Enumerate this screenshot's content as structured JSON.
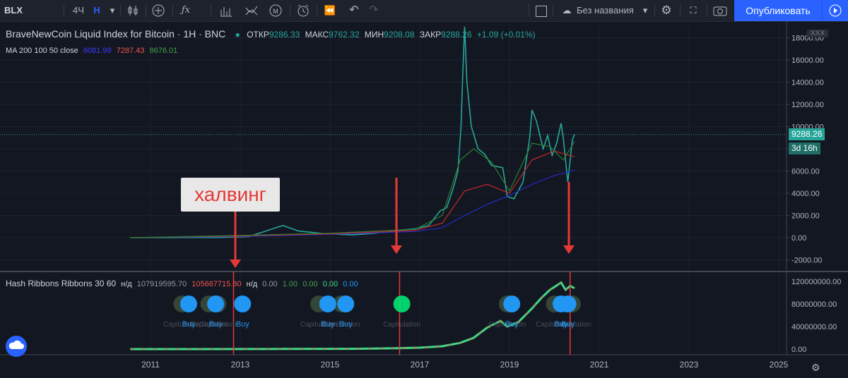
{
  "toolbar": {
    "symbol": "BLX",
    "interval_4h": "4Ч",
    "interval_h": "Н",
    "layout_name": "Без названия",
    "publish_label": "Опубликовать",
    "icons": [
      "candles-icon",
      "add-indicator-icon",
      "fx-icon",
      "bars-icon",
      "compare-icon",
      "alert-icon",
      "replay-icon",
      "undo-icon",
      "redo-icon",
      "fullscreen-icon",
      "cloud-icon",
      "settings-icon",
      "expand-icon",
      "camera-icon",
      "play-icon"
    ]
  },
  "main_legend": {
    "title": "BraveNewCoin Liquid Index for Bitcoin · 1H · BNC",
    "open_label": "ОТКР",
    "open_val": "9286.33",
    "high_label": "МАКС",
    "high_val": "9762.32",
    "low_label": "МИН",
    "low_val": "9208.08",
    "close_label": "ЗАКР",
    "close_val": "9288.26",
    "change": "+1.09 (+0.01%)",
    "ma_label": "MA 200 100 50 close",
    "ma200": "6081.99",
    "ma100": "7287.43",
    "ma50": "8676.01",
    "xxx_badge": "XXX"
  },
  "price_tag": {
    "price": "9288.26",
    "countdown": "3d 16h"
  },
  "annotation": {
    "halving_label": "халвинг"
  },
  "hash_legend": {
    "title": "Hash Ribbons Ribbons 30 60",
    "v1": "н/д",
    "v2": "107919595.70",
    "v3": "105667715.80",
    "v4": "н/д",
    "v5": "0.00",
    "v6": "1.00",
    "v7": "0.00",
    "v8": "0.00",
    "v9": "0.00"
  },
  "signal_labels": {
    "buy": "Buy",
    "capitulation": "Capitulation"
  },
  "colors": {
    "background": "#131722",
    "up": "#26a69a",
    "down": "#ef5350",
    "ma200": "#2828c8",
    "ma100": "#c62828",
    "ma50": "#2e7d32",
    "hash_green": "#3ddc84",
    "buy_blue": "#2196f3",
    "arrow_red": "#e53935"
  },
  "chart_data": [
    {
      "type": "line",
      "title": "BraveNewCoin Liquid Index for Bitcoin · 1H · BNC",
      "x_unit": "year",
      "x_ticks": [
        "2011",
        "2013",
        "2015",
        "2017",
        "2019",
        "2021",
        "2023",
        "2025"
      ],
      "y_ticks": [
        "-2000.00",
        "0.00",
        "2000.00",
        "4000.00",
        "6000.00",
        "8000.00",
        "10000.00",
        "12000.00",
        "14000.00",
        "16000.00",
        "18000.00"
      ],
      "ylim": [
        -2600,
        19500
      ],
      "series": [
        {
          "name": "price",
          "x": [
            2010.55,
            2011.5,
            2012.5,
            2013.2,
            2013.8,
            2013.95,
            2014.3,
            2014.9,
            2015.5,
            2016.0,
            2016.5,
            2016.9,
            2017.2,
            2017.45,
            2017.6,
            2017.75,
            2017.85,
            2017.92,
            2017.96,
            2018.0,
            2018.05,
            2018.15,
            2018.3,
            2018.45,
            2018.6,
            2018.85,
            2018.95,
            2019.1,
            2019.3,
            2019.45,
            2019.5,
            2019.6,
            2019.75,
            2019.85,
            2019.95,
            2020.05,
            2020.15,
            2020.2,
            2020.3,
            2020.4,
            2020.45
          ],
          "values": [
            0,
            5,
            10,
            100,
            900,
            1100,
            600,
            350,
            250,
            400,
            650,
            800,
            1100,
            2400,
            2700,
            4500,
            6000,
            10000,
            15000,
            19000,
            14000,
            10000,
            8000,
            7500,
            6500,
            6300,
            3700,
            3500,
            5000,
            9000,
            11500,
            10500,
            8000,
            9200,
            7400,
            8500,
            10300,
            8900,
            5000,
            8800,
            9288
          ]
        },
        {
          "name": "MA 200",
          "x": [
            2010.55,
            2013.0,
            2015.0,
            2016.9,
            2017.5,
            2018.0,
            2018.5,
            2019.0,
            2019.5,
            2020.0,
            2020.45
          ],
          "values": [
            0,
            100,
            300,
            550,
            900,
            2000,
            3000,
            3800,
            4800,
            5600,
            6082
          ]
        },
        {
          "name": "MA 100",
          "x": [
            2010.55,
            2013.0,
            2015.0,
            2016.9,
            2017.5,
            2018.0,
            2018.5,
            2019.0,
            2019.5,
            2020.0,
            2020.45
          ],
          "values": [
            0,
            150,
            350,
            650,
            1300,
            4200,
            4800,
            4000,
            7000,
            7800,
            7287
          ]
        },
        {
          "name": "MA 50",
          "x": [
            2010.55,
            2013.0,
            2015.0,
            2016.9,
            2017.5,
            2017.9,
            2018.2,
            2018.6,
            2019.0,
            2019.5,
            2019.9,
            2020.2,
            2020.45
          ],
          "values": [
            0,
            200,
            400,
            750,
            2000,
            7000,
            8000,
            6800,
            4200,
            8500,
            8200,
            7000,
            8676
          ]
        }
      ]
    },
    {
      "type": "line",
      "title": "Hash Ribbons Ribbons 30 60",
      "x_unit": "year",
      "y_ticks": [
        "0.00",
        "40000000.00",
        "80000000.00",
        "120000000.00"
      ],
      "ylim": [
        -6000000,
        130000000
      ],
      "series": [
        {
          "name": "hash",
          "x": [
            2010.55,
            2012.0,
            2014.0,
            2015.5,
            2016.5,
            2017.0,
            2017.5,
            2017.9,
            2018.2,
            2018.5,
            2018.8,
            2018.95,
            2019.2,
            2019.5,
            2019.7,
            2019.9,
            2020.0,
            2020.15,
            2020.25,
            2020.35,
            2020.45
          ],
          "values": [
            0,
            50000,
            300000,
            500000,
            1500000,
            2500000,
            5000000,
            11000000,
            20000000,
            38000000,
            50000000,
            40000000,
            48000000,
            72000000,
            90000000,
            105000000,
            110000000,
            118000000,
            105000000,
            112000000,
            107900000
          ]
        },
        {
          "name": "capitulation signals",
          "type": "scatter",
          "x": [
            2011.7,
            2012.3,
            2012.5,
            2014.75,
            2015.25,
            2016.6,
            2018.95,
            2020.0,
            2020.4
          ],
          "values": [
            80000000,
            80000000,
            80000000,
            80000000,
            80000000,
            80000000,
            80000000,
            80000000,
            80000000
          ]
        },
        {
          "name": "buy signals",
          "type": "scatter",
          "x": [
            2011.85,
            2012.45,
            2013.05,
            2014.95,
            2015.35,
            2019.05,
            2020.15,
            2020.3
          ],
          "values": [
            80000000,
            80000000,
            80000000,
            80000000,
            80000000,
            80000000,
            80000000,
            80000000
          ]
        }
      ],
      "vertical_markers_year": [
        2012.85,
        2016.55,
        2020.35
      ]
    }
  ]
}
